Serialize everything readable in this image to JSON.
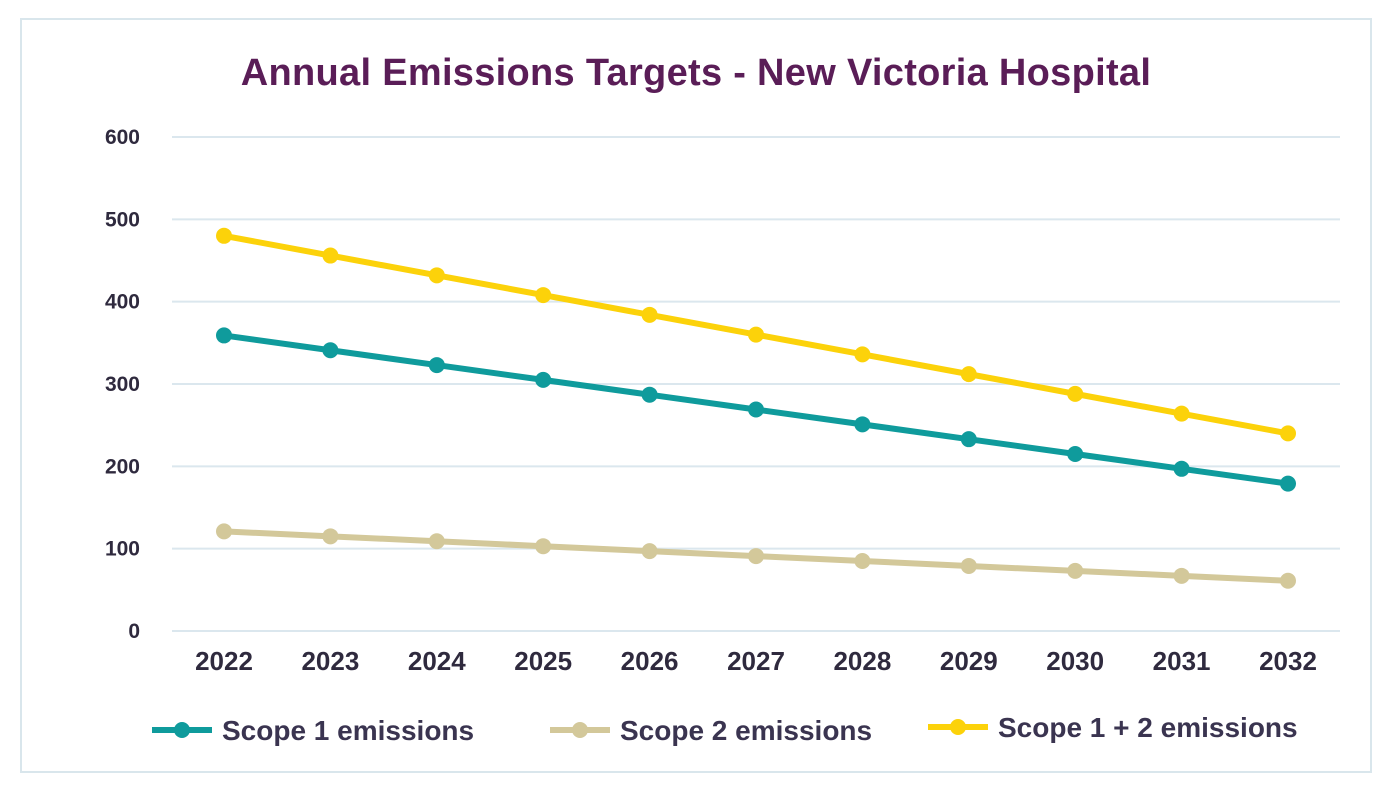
{
  "chart_data": {
    "type": "line",
    "title": "Annual Emissions Targets - New Victoria Hospital",
    "xlabel": "",
    "ylabel": "",
    "ylim": [
      0,
      600
    ],
    "yticks": [
      0,
      100,
      200,
      300,
      400,
      500,
      600
    ],
    "grid": true,
    "legend_position": "bottom",
    "categories": [
      "2022",
      "2023",
      "2024",
      "2025",
      "2026",
      "2027",
      "2028",
      "2029",
      "2030",
      "2031",
      "2032"
    ],
    "series": [
      {
        "name": "Scope 1 emissions",
        "color": "#0f9b9c",
        "values": [
          359,
          341,
          323,
          305,
          287,
          269,
          251,
          233,
          215,
          197,
          179
        ]
      },
      {
        "name": "Scope 2 emissions",
        "color": "#d3c89a",
        "values": [
          121,
          115,
          109,
          103,
          97,
          91,
          85,
          79,
          73,
          67,
          61
        ]
      },
      {
        "name": "Scope 1 + 2 emissions",
        "color": "#fcd20a",
        "values": [
          480,
          456,
          432,
          408,
          384,
          360,
          336,
          312,
          288,
          264,
          240
        ]
      }
    ]
  }
}
